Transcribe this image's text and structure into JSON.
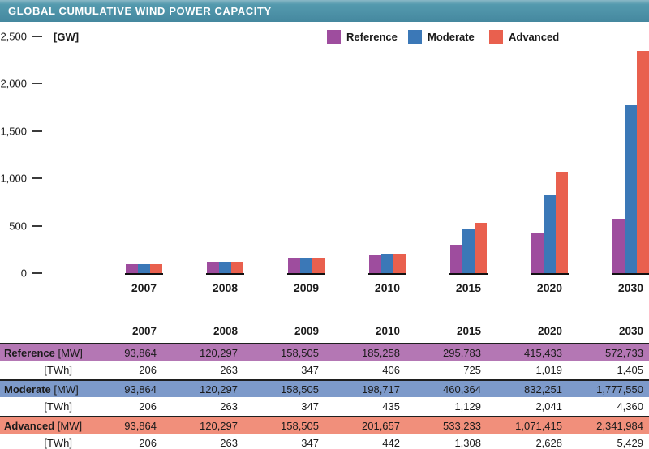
{
  "title": "GLOBAL CUMULATIVE WIND POWER CAPACITY",
  "colors": {
    "title_bar": "#45889f",
    "reference": "#9e4d9e",
    "moderate": "#3b78b7",
    "advanced": "#e9604e",
    "reference_band": "#b477b4",
    "moderate_band": "#7d9aca",
    "advanced_band": "#f18f7b",
    "axis": "#1b1b1b"
  },
  "chart_data": {
    "type": "bar",
    "title": "GLOBAL CUMULATIVE WIND POWER CAPACITY",
    "ylabel": "[GW]",
    "ylim": [
      0,
      2500
    ],
    "yticks": [
      0,
      500,
      1000,
      1500,
      2000,
      2500
    ],
    "ytick_labels": [
      "0",
      "500",
      "1,000",
      "1,500",
      "2,000",
      "2,500"
    ],
    "grid": false,
    "legend_position": "top-center",
    "categories": [
      "2007",
      "2008",
      "2009",
      "2010",
      "2015",
      "2020",
      "2030"
    ],
    "series": [
      {
        "name": "Reference",
        "color_key": "reference",
        "values_mw": [
          93864,
          120297,
          158505,
          185258,
          295783,
          415433,
          572733
        ],
        "values_twh": [
          206,
          263,
          347,
          406,
          725,
          1019,
          1405
        ]
      },
      {
        "name": "Moderate",
        "color_key": "moderate",
        "values_mw": [
          93864,
          120297,
          158505,
          198717,
          460364,
          832251,
          1777550
        ],
        "values_twh": [
          206,
          263,
          347,
          435,
          1129,
          2041,
          4360
        ]
      },
      {
        "name": "Advanced",
        "color_key": "advanced",
        "values_mw": [
          93864,
          120297,
          158505,
          201657,
          533233,
          1071415,
          2341984
        ],
        "values_twh": [
          206,
          263,
          347,
          442,
          1308,
          2628,
          5429
        ]
      }
    ]
  },
  "table": {
    "year_headers": [
      "2007",
      "2008",
      "2009",
      "2010",
      "2015",
      "2020",
      "2030"
    ],
    "rows": [
      {
        "label": "Reference",
        "unit": "[MW]",
        "band": "reference",
        "values": [
          "93,864",
          "120,297",
          "158,505",
          "185,258",
          "295,783",
          "415,433",
          "572,733"
        ]
      },
      {
        "label": "",
        "unit": "[TWh]",
        "band": "",
        "values": [
          "206",
          "263",
          "347",
          "406",
          "725",
          "1,019",
          "1,405"
        ]
      },
      {
        "label": "Moderate",
        "unit": "[MW]",
        "band": "moderate",
        "values": [
          "93,864",
          "120,297",
          "158,505",
          "198,717",
          "460,364",
          "832,251",
          "1,777,550"
        ]
      },
      {
        "label": "",
        "unit": "[TWh]",
        "band": "",
        "values": [
          "206",
          "263",
          "347",
          "435",
          "1,129",
          "2,041",
          "4,360"
        ]
      },
      {
        "label": "Advanced",
        "unit": "[MW]",
        "band": "advanced",
        "values": [
          "93,864",
          "120,297",
          "158,505",
          "201,657",
          "533,233",
          "1,071,415",
          "2,341,984"
        ]
      },
      {
        "label": "",
        "unit": "[TWh]",
        "band": "",
        "values": [
          "206",
          "263",
          "347",
          "442",
          "1,308",
          "2,628",
          "5,429"
        ]
      }
    ]
  }
}
